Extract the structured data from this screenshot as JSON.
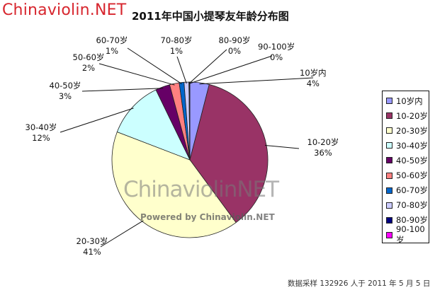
{
  "logo": "Chinaviolin.NET",
  "footer": "数据采样 132926 人于 2011 年 5 月 5 日",
  "watermark": {
    "big": "ChinaviolinNET",
    "small": "Powered by Chinaviolin.NET"
  },
  "chart_data": {
    "type": "pie",
    "title": "2011年中国小提琴友年龄分布图",
    "legend_position": "right",
    "slices": [
      {
        "label": "10岁内",
        "value": 4,
        "value_label": "4%",
        "color": "#9999ff"
      },
      {
        "label": "10-20岁",
        "value": 36,
        "value_label": "36%",
        "color": "#993366"
      },
      {
        "label": "20-30岁",
        "value": 41,
        "value_label": "41%",
        "color": "#ffffcc"
      },
      {
        "label": "30-40岁",
        "value": 12,
        "value_label": "12%",
        "color": "#ccffff"
      },
      {
        "label": "40-50岁",
        "value": 3,
        "value_label": "3%",
        "color": "#660066"
      },
      {
        "label": "50-60岁",
        "value": 2,
        "value_label": "2%",
        "color": "#ff8080"
      },
      {
        "label": "60-70岁",
        "value": 1,
        "value_label": "1%",
        "color": "#0066cc"
      },
      {
        "label": "70-80岁",
        "value": 1,
        "value_label": "1%",
        "color": "#ccccff"
      },
      {
        "label": "80-90岁",
        "value": 0,
        "value_label": "0%",
        "color": "#000080"
      },
      {
        "label": "90-100岁",
        "value": 0,
        "value_label": "0%",
        "color": "#ff00ff"
      }
    ]
  }
}
